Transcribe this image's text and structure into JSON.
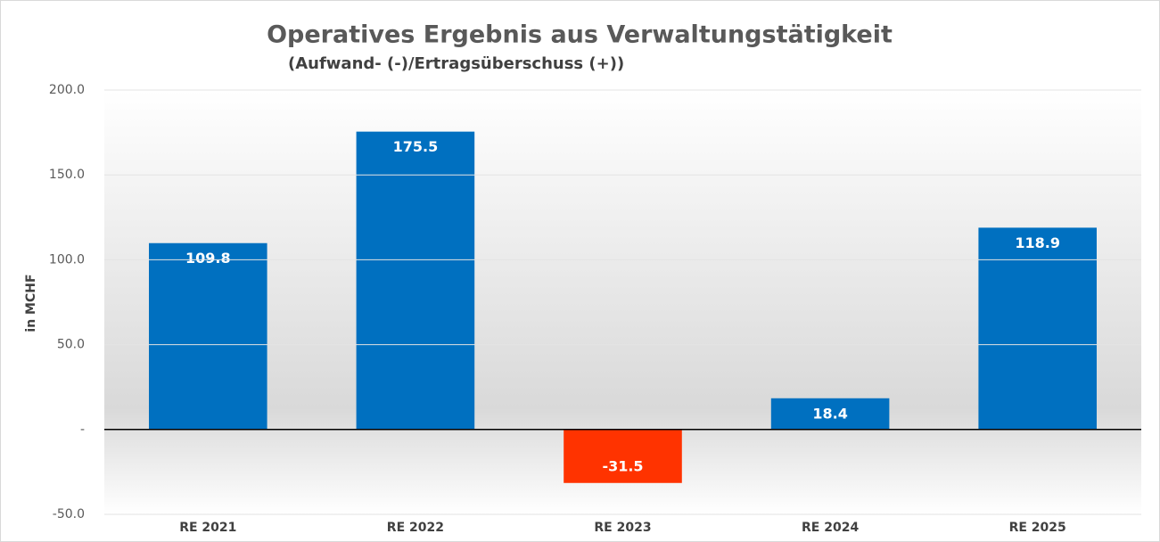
{
  "chart_data": {
    "type": "bar",
    "title": "Operatives Ergebnis aus Verwaltungstätigkeit",
    "subtitle": "(Aufwand- (-)/Ertragsüberschuss (+))",
    "y_label": "in MCHF",
    "categories": [
      "RE 2021",
      "RE 2022",
      "RE 2023",
      "RE 2024",
      "RE 2025"
    ],
    "values": [
      109.8,
      175.5,
      -31.5,
      18.4,
      118.9
    ],
    "colors": [
      "#0070c0",
      "#0070c0",
      "#ff3300",
      "#0070c0",
      "#0070c0"
    ],
    "ylim": [
      -50,
      200
    ],
    "yticks": [
      {
        "value": -50,
        "label": "-50.0"
      },
      {
        "value": 0,
        "label": "-"
      },
      {
        "value": 50,
        "label": "50.0"
      },
      {
        "value": 100,
        "label": "100.0"
      },
      {
        "value": 150,
        "label": "150.0"
      },
      {
        "value": 200,
        "label": "200.0"
      }
    ],
    "grid": true
  }
}
